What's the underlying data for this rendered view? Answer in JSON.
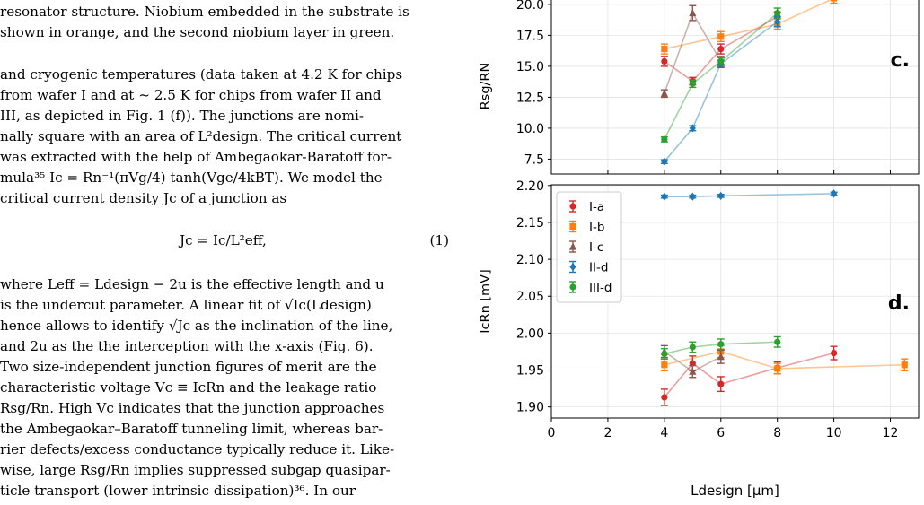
{
  "paper": {
    "lines": [
      "resonator structure. Niobium embedded in the substrate is",
      "shown in orange, and the second niobium layer in green.",
      "and cryogenic temperatures (data taken at 4.2 K for chips",
      "from wafer I and at ~ 2.5 K for chips from wafer II and",
      "III, as depicted in Fig. 1 (f)).  The junctions are nomi-",
      "nally square with an area of L²design.  The critical current",
      "was extracted with the help of Ambegaokar-Baratoff for-",
      "mula³⁵ Ic = Rn⁻¹(πVg/4) tanh(Vge/4kBT). We model the",
      "critical current density Jc of a junction as",
      "where Leff = Ldesign − 2u is the effective length and u",
      "is the undercut parameter.  A linear fit of √Ic(Ldesign)",
      "hence allows to identify √Jc as the inclination of the line,",
      "and 2u as the the interception with the x-axis (Fig. 6).",
      "    Two size-independent junction figures of merit are the",
      "characteristic voltage Vc ≡ IcRn and the leakage ratio",
      "Rsg/Rn.  High Vc indicates that the junction approaches",
      "the Ambegaokar–Baratoff tunneling limit, whereas bar-",
      "rier defects/excess conductance typically reduce it.  Like-",
      "wise, large Rsg/Rn implies suppressed subgap quasipar-",
      "ticle transport (lower intrinsic dissipation)³⁶.   In our"
    ],
    "equation": "Jc = Ic/L²eff,",
    "equation_number": "(1)"
  },
  "chart_data": [
    {
      "type": "scatter",
      "panel_label": "c.",
      "ylabel": "Rsg/RN",
      "yticks": [
        "7.5",
        "10.0",
        "12.5",
        "15.0",
        "17.5",
        "20.0"
      ],
      "xlim": [
        0,
        13.0
      ],
      "ylim": [
        6.3,
        20.5
      ],
      "grid": true,
      "series": [
        {
          "color": "#d62728",
          "marker": "circle",
          "x": [
            4,
            5,
            6,
            8
          ],
          "y": [
            15.4,
            13.8,
            16.4,
            19.0
          ],
          "err": [
            0.4,
            0.3,
            0.4,
            0.4
          ]
        },
        {
          "color": "#ff7f0e",
          "marker": "square",
          "x": [
            4,
            6,
            8,
            10
          ],
          "y": [
            16.4,
            17.4,
            18.4,
            20.5
          ],
          "err": [
            0.4,
            0.4,
            0.4,
            0.4
          ]
        },
        {
          "color": "#8c564b",
          "marker": "triangle",
          "x": [
            4,
            5,
            6
          ],
          "y": [
            12.8,
            19.3,
            15.4
          ],
          "err": [
            0.3,
            0.6,
            0.4
          ]
        },
        {
          "color": "#1f77b4",
          "marker": "diamond",
          "x": [
            4,
            5,
            6,
            8
          ],
          "y": [
            7.3,
            10.0,
            15.2,
            18.6
          ],
          "err": [
            0.15,
            0.2,
            0.3,
            0.4
          ]
        },
        {
          "color": "#2ca02c",
          "marker": "circle",
          "x": [
            4,
            5,
            6,
            8
          ],
          "y": [
            9.1,
            13.6,
            15.4,
            19.3
          ],
          "err": [
            0.2,
            0.3,
            0.3,
            0.4
          ]
        }
      ]
    },
    {
      "type": "scatter",
      "panel_label": "d.",
      "ylabel": "IcRn [mV]",
      "xlabel": "Ldesign [μm]",
      "xticks": [
        "0",
        "2",
        "4",
        "6",
        "8",
        "10",
        "12"
      ],
      "yticks": [
        "1.90",
        "1.95",
        "2.00",
        "2.05",
        "2.10",
        "2.15",
        "2.20"
      ],
      "xlim": [
        0,
        13.0
      ],
      "ylim": [
        1.885,
        2.201
      ],
      "grid": true,
      "legend_position": "upper-left",
      "series": [
        {
          "name": "I-a",
          "color": "#d62728",
          "marker": "circle",
          "x": [
            4,
            5,
            6,
            8,
            10
          ],
          "y": [
            1.913,
            1.959,
            1.931,
            1.953,
            1.973
          ],
          "err": [
            0.011,
            0.01,
            0.01,
            0.008,
            0.009
          ]
        },
        {
          "name": "I-b",
          "color": "#ff7f0e",
          "marker": "square",
          "x": [
            4,
            6,
            8,
            12.5
          ],
          "y": [
            1.957,
            1.975,
            1.952,
            1.957
          ],
          "err": [
            0.008,
            0.008,
            0.007,
            0.008
          ]
        },
        {
          "name": "I-c",
          "color": "#8c564b",
          "marker": "triangle",
          "x": [
            4,
            5,
            6
          ],
          "y": [
            1.975,
            1.948,
            1.968
          ],
          "err": [
            0.008,
            0.008,
            0.009
          ]
        },
        {
          "name": "II-d",
          "color": "#1f77b4",
          "marker": "diamond",
          "x": [
            4,
            5,
            6,
            10
          ],
          "y": [
            2.185,
            2.185,
            2.186,
            2.189
          ],
          "err": [
            0.002,
            0.002,
            0.002,
            0.002
          ]
        },
        {
          "name": "III-d",
          "color": "#2ca02c",
          "marker": "circle",
          "x": [
            4,
            5,
            6,
            8
          ],
          "y": [
            1.972,
            1.981,
            1.985,
            1.988
          ],
          "err": [
            0.007,
            0.007,
            0.007,
            0.007
          ]
        }
      ]
    }
  ]
}
